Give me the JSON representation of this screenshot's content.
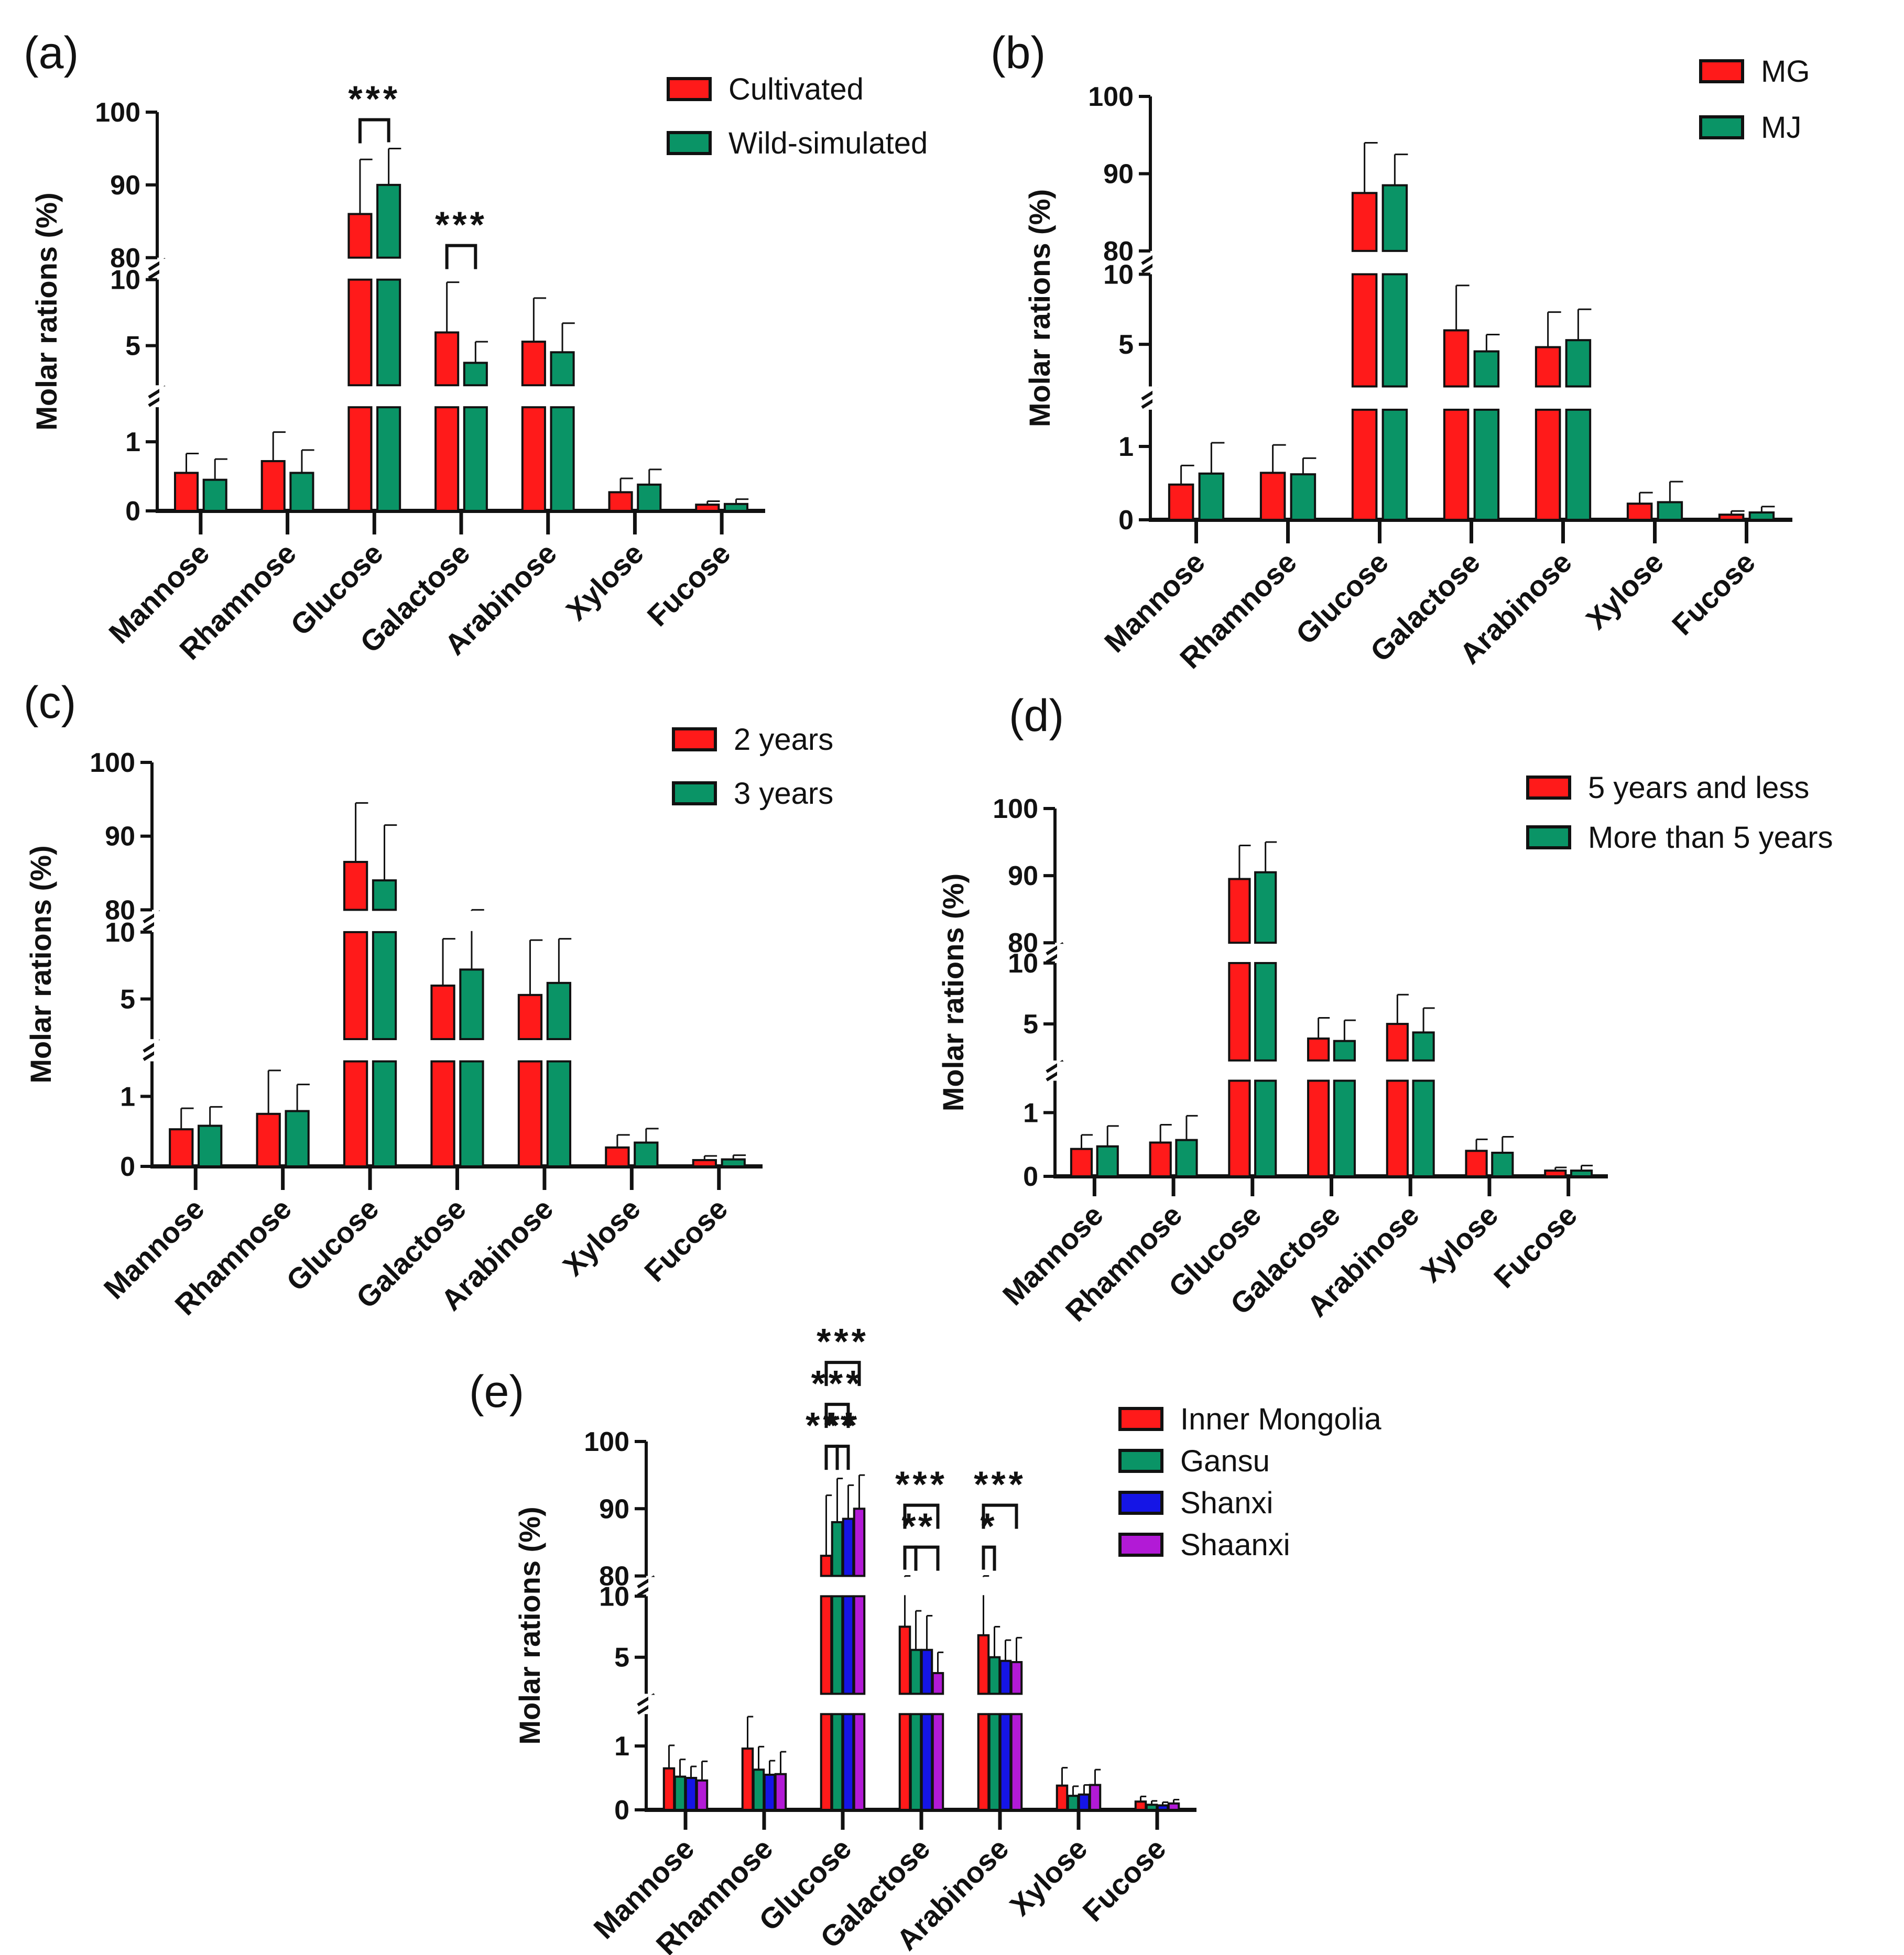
{
  "figure": {
    "categories": [
      "Mannose",
      "Rhamnose",
      "Glucose",
      "Galactose",
      "Arabinose",
      "Xylose",
      "Fucose"
    ],
    "y_ticks": [
      "0",
      "1",
      "5",
      "10",
      "80",
      "90",
      "100"
    ],
    "colors": {
      "red": "#ff1a1a",
      "green": "#0a9466",
      "blue": "#1515e6",
      "purple": "#b21ad6",
      "axis": "#111111"
    }
  },
  "chart_data": [
    {
      "panel": "(a)",
      "type": "bar",
      "ylabel": "Molar rations (%)",
      "y_axis_segments": [
        [
          0,
          1.5
        ],
        [
          2,
          10
        ],
        [
          80,
          100
        ]
      ],
      "categories": [
        "Mannose",
        "Rhamnose",
        "Glucose",
        "Galactose",
        "Arabinose",
        "Xylose",
        "Fucose"
      ],
      "series": [
        {
          "name": "Cultivated",
          "color": "#ff1a1a",
          "values": [
            0.55,
            0.72,
            86.0,
            6.0,
            5.3,
            0.27,
            0.09
          ],
          "errors": [
            0.28,
            0.42,
            7.5,
            3.8,
            3.3,
            0.2,
            0.05
          ]
        },
        {
          "name": "Wild-simulated",
          "color": "#0a9466",
          "values": [
            0.45,
            0.55,
            90.0,
            3.7,
            4.5,
            0.38,
            0.1
          ],
          "errors": [
            0.3,
            0.33,
            5.0,
            1.6,
            2.2,
            0.22,
            0.07
          ]
        }
      ],
      "significance": [
        {
          "category": "Glucose",
          "from": 0,
          "to": 1,
          "label": "***"
        },
        {
          "category": "Galactose",
          "from": 0,
          "to": 1,
          "label": "***"
        }
      ]
    },
    {
      "panel": "(b)",
      "type": "bar",
      "ylabel": "Molar rations (%)",
      "y_axis_segments": [
        [
          0,
          1.5
        ],
        [
          2,
          10
        ],
        [
          80,
          100
        ]
      ],
      "categories": [
        "Mannose",
        "Rhamnose",
        "Glucose",
        "Galactose",
        "Arabinose",
        "Xylose",
        "Fucose"
      ],
      "series": [
        {
          "name": "MG",
          "color": "#ff1a1a",
          "values": [
            0.48,
            0.64,
            87.5,
            6.0,
            4.8,
            0.22,
            0.07
          ],
          "errors": [
            0.26,
            0.38,
            6.5,
            3.2,
            2.5,
            0.15,
            0.05
          ]
        },
        {
          "name": "MJ",
          "color": "#0a9466",
          "values": [
            0.63,
            0.62,
            88.5,
            4.5,
            5.3,
            0.24,
            0.1
          ],
          "errors": [
            0.42,
            0.22,
            4.0,
            1.2,
            2.2,
            0.28,
            0.08
          ]
        }
      ],
      "significance": []
    },
    {
      "panel": "(c)",
      "type": "bar",
      "ylabel": "Molar rations (%)",
      "y_axis_segments": [
        [
          0,
          1.5
        ],
        [
          2,
          10
        ],
        [
          80,
          100
        ]
      ],
      "categories": [
        "Mannose",
        "Rhamnose",
        "Glucose",
        "Galactose",
        "Arabinose",
        "Xylose",
        "Fucose"
      ],
      "series": [
        {
          "name": "2 years",
          "color": "#ff1a1a",
          "values": [
            0.53,
            0.75,
            86.5,
            6.0,
            5.3,
            0.27,
            0.09
          ],
          "errors": [
            0.3,
            0.62,
            8.0,
            3.5,
            4.1,
            0.18,
            0.06
          ]
        },
        {
          "name": "3 years",
          "color": "#0a9466",
          "values": [
            0.58,
            0.79,
            84.0,
            7.2,
            6.2,
            0.34,
            0.1
          ],
          "errors": [
            0.27,
            0.38,
            7.5,
            5.3,
            3.3,
            0.2,
            0.06
          ]
        }
      ],
      "significance": []
    },
    {
      "panel": "(d)",
      "type": "bar",
      "ylabel": "Molar rations (%)",
      "y_axis_segments": [
        [
          0,
          1.5
        ],
        [
          2,
          10
        ],
        [
          80,
          100
        ]
      ],
      "categories": [
        "Mannose",
        "Rhamnose",
        "Glucose",
        "Galactose",
        "Arabinose",
        "Xylose",
        "Fucose"
      ],
      "series": [
        {
          "name": "5 years and less",
          "color": "#ff1a1a",
          "values": [
            0.43,
            0.53,
            89.5,
            3.8,
            5.0,
            0.4,
            0.09
          ],
          "errors": [
            0.22,
            0.28,
            5.0,
            1.7,
            2.4,
            0.18,
            0.05
          ]
        },
        {
          "name": "More than 5 years",
          "color": "#0a9466",
          "values": [
            0.47,
            0.57,
            90.5,
            3.6,
            4.3,
            0.37,
            0.09
          ],
          "errors": [
            0.32,
            0.38,
            4.5,
            1.7,
            2.0,
            0.25,
            0.08
          ]
        }
      ],
      "significance": []
    },
    {
      "panel": "(e)",
      "type": "bar",
      "ylabel": "Molar rations (%)",
      "y_axis_segments": [
        [
          0,
          1.5
        ],
        [
          2,
          10
        ],
        [
          80,
          100
        ]
      ],
      "categories": [
        "Mannose",
        "Rhamnose",
        "Glucose",
        "Galactose",
        "Arabinose",
        "Xylose",
        "Fucose"
      ],
      "series": [
        {
          "name": "Inner Mongolia",
          "color": "#ff1a1a",
          "values": [
            0.65,
            0.96,
            83.0,
            7.5,
            6.8,
            0.38,
            0.13
          ],
          "errors": [
            0.36,
            0.5,
            9.0,
            4.7,
            4.8,
            0.28,
            0.08
          ]
        },
        {
          "name": "Gansu",
          "color": "#0a9466",
          "values": [
            0.52,
            0.63,
            88.0,
            5.6,
            5.0,
            0.22,
            0.08
          ],
          "errors": [
            0.27,
            0.36,
            6.5,
            3.2,
            2.5,
            0.15,
            0.06
          ]
        },
        {
          "name": "Shanxi",
          "color": "#1515e6",
          "values": [
            0.5,
            0.55,
            88.5,
            5.6,
            4.7,
            0.24,
            0.07
          ],
          "errors": [
            0.18,
            0.22,
            5.0,
            2.8,
            1.7,
            0.15,
            0.05
          ]
        },
        {
          "name": "Shaanxi",
          "color": "#b21ad6",
          "values": [
            0.46,
            0.56,
            90.0,
            3.7,
            4.6,
            0.39,
            0.1
          ],
          "errors": [
            0.3,
            0.35,
            5.0,
            1.7,
            2.0,
            0.24,
            0.06
          ]
        }
      ],
      "significance": [
        {
          "category": "Glucose",
          "from": 0,
          "to": 1,
          "label": "***",
          "level": 0
        },
        {
          "category": "Glucose",
          "from": 1,
          "to": 2,
          "label": "**",
          "level": 0
        },
        {
          "category": "Glucose",
          "from": 0,
          "to": 2,
          "label": "***",
          "level": 1
        },
        {
          "category": "Glucose",
          "from": 0,
          "to": 3,
          "label": "***",
          "level": 2
        },
        {
          "category": "Galactose",
          "from": 0,
          "to": 1,
          "label": "*",
          "level": 0
        },
        {
          "category": "Galactose",
          "from": 1,
          "to": 3,
          "label": "*",
          "level": 0
        },
        {
          "category": "Galactose",
          "from": 0,
          "to": 3,
          "label": "***",
          "level": 1
        },
        {
          "category": "Arabinose",
          "from": 0,
          "to": 1,
          "label": "*",
          "level": 0
        },
        {
          "category": "Arabinose",
          "from": 0,
          "to": 3,
          "label": "***",
          "level": 1
        }
      ]
    }
  ]
}
